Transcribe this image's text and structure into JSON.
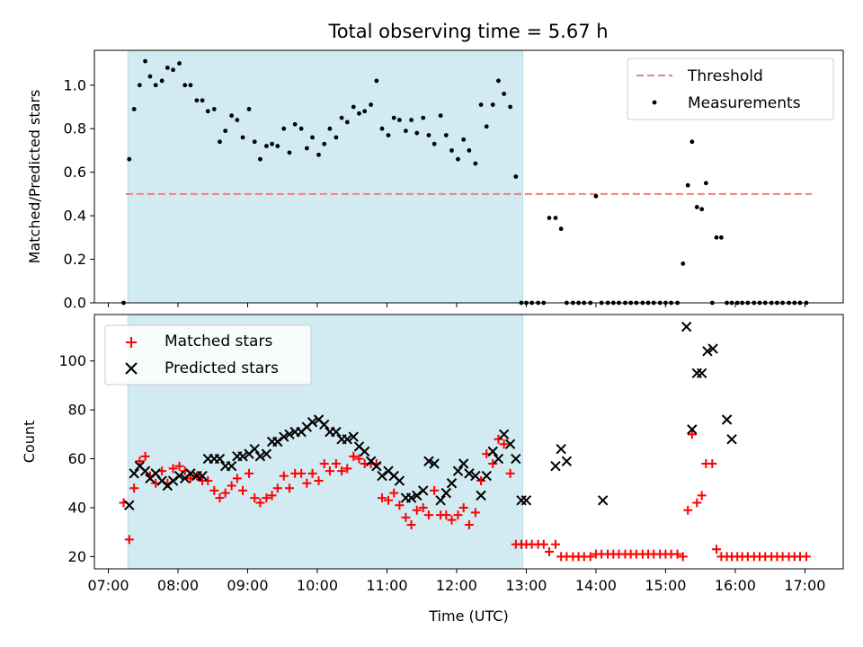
{
  "figure": {
    "title": "Total observing time = 5.67 h"
  },
  "chart_data": [
    {
      "type": "scatter",
      "panel": "top",
      "ylabel": "Matched/Predicted stars",
      "xlabel": "",
      "xlim": [
        6.8,
        17.55
      ],
      "ylim": [
        0,
        1.16
      ],
      "yticks": [
        0.0,
        0.2,
        0.4,
        0.6,
        0.8,
        1.0
      ],
      "ytick_labels": [
        "0.0",
        "0.2",
        "0.4",
        "0.6",
        "0.8",
        "1.0"
      ],
      "grid": false,
      "legend_position": "top-right",
      "shaded_region": {
        "x0": 7.28,
        "x1": 12.95,
        "color": "#add8e6"
      },
      "threshold": {
        "name": "Threshold",
        "y": 0.5,
        "x0": 7.25,
        "x1": 17.1,
        "color": "#f08080"
      },
      "series": [
        {
          "name": "Measurements",
          "color": "#000000",
          "marker": "dot",
          "x": [
            7.22,
            7.3,
            7.37,
            7.45,
            7.53,
            7.6,
            7.68,
            7.77,
            7.85,
            7.93,
            8.02,
            8.1,
            8.18,
            8.27,
            8.35,
            8.43,
            8.52,
            8.6,
            8.68,
            8.77,
            8.85,
            8.93,
            9.02,
            9.1,
            9.18,
            9.27,
            9.35,
            9.43,
            9.52,
            9.6,
            9.68,
            9.77,
            9.85,
            9.93,
            10.02,
            10.1,
            10.18,
            10.27,
            10.35,
            10.43,
            10.52,
            10.6,
            10.68,
            10.77,
            10.85,
            10.93,
            11.02,
            11.1,
            11.18,
            11.27,
            11.35,
            11.43,
            11.52,
            11.6,
            11.68,
            11.77,
            11.85,
            11.93,
            12.02,
            12.1,
            12.18,
            12.27,
            12.35,
            12.43,
            12.52,
            12.6,
            12.68,
            12.77,
            12.85,
            12.93,
            13.0,
            13.08,
            13.17,
            13.25,
            13.33,
            13.42,
            13.5,
            13.58,
            13.67,
            13.75,
            13.83,
            13.92,
            14.0,
            14.08,
            14.17,
            14.25,
            14.33,
            14.42,
            14.5,
            14.58,
            14.67,
            14.75,
            14.83,
            14.92,
            15.0,
            15.08,
            15.17,
            15.25,
            15.32,
            15.38,
            15.45,
            15.52,
            15.58,
            15.67,
            15.73,
            15.8,
            15.88,
            15.95,
            16.03,
            16.1,
            16.18,
            16.27,
            16.35,
            16.43,
            16.52,
            16.6,
            16.68,
            16.77,
            16.85,
            16.93,
            17.02
          ],
          "y": [
            0.0,
            0.66,
            0.89,
            1.0,
            1.11,
            1.04,
            1.0,
            1.02,
            1.08,
            1.07,
            1.1,
            1.0,
            1.0,
            0.93,
            0.93,
            0.88,
            0.89,
            0.74,
            0.79,
            0.86,
            0.84,
            0.76,
            0.89,
            0.74,
            0.66,
            0.72,
            0.73,
            0.72,
            0.8,
            0.69,
            0.82,
            0.8,
            0.71,
            0.76,
            0.68,
            0.73,
            0.8,
            0.76,
            0.85,
            0.83,
            0.9,
            0.87,
            0.88,
            0.91,
            1.02,
            0.8,
            0.77,
            0.85,
            0.84,
            0.79,
            0.84,
            0.78,
            0.85,
            0.77,
            0.73,
            0.86,
            0.77,
            0.7,
            0.66,
            0.75,
            0.7,
            0.64,
            0.91,
            0.81,
            0.91,
            1.02,
            0.96,
            0.9,
            0.58,
            0.0,
            0.0,
            0.0,
            0.0,
            0.0,
            0.39,
            0.39,
            0.34,
            0.0,
            0.0,
            0.0,
            0.0,
            0.0,
            0.49,
            0.0,
            0.0,
            0.0,
            0.0,
            0.0,
            0.0,
            0.0,
            0.0,
            0.0,
            0.0,
            0.0,
            0.0,
            0.0,
            0.0,
            0.18,
            0.54,
            0.74,
            0.44,
            0.43,
            0.55,
            0.0,
            0.3,
            0.3,
            0.0,
            0.0,
            0.0,
            0.0,
            0.0,
            0.0,
            0.0,
            0.0,
            0.0,
            0.0,
            0.0,
            0.0,
            0.0,
            0.0,
            0.0
          ]
        }
      ]
    },
    {
      "type": "scatter",
      "panel": "bottom",
      "ylabel": "Count",
      "xlabel": "Time (UTC)",
      "xlim": [
        6.8,
        17.55
      ],
      "ylim": [
        15,
        119
      ],
      "xticks": [
        7,
        8,
        9,
        10,
        11,
        12,
        13,
        14,
        15,
        16,
        17
      ],
      "xtick_labels": [
        "07:00",
        "08:00",
        "09:00",
        "10:00",
        "11:00",
        "12:00",
        "13:00",
        "14:00",
        "15:00",
        "16:00",
        "17:00"
      ],
      "yticks": [
        20,
        40,
        60,
        80,
        100
      ],
      "ytick_labels": [
        "20",
        "40",
        "60",
        "80",
        "100"
      ],
      "grid": false,
      "legend_position": "top-left",
      "shaded_region": {
        "x0": 7.28,
        "x1": 12.95,
        "color": "#add8e6"
      },
      "series": [
        {
          "name": "Matched stars",
          "color": "#ff0000",
          "marker": "plus",
          "x": [
            7.22,
            7.3,
            7.37,
            7.45,
            7.53,
            7.6,
            7.68,
            7.77,
            7.85,
            7.93,
            8.02,
            8.1,
            8.18,
            8.27,
            8.35,
            8.43,
            8.52,
            8.6,
            8.68,
            8.77,
            8.85,
            8.93,
            9.02,
            9.1,
            9.18,
            9.27,
            9.35,
            9.43,
            9.52,
            9.6,
            9.68,
            9.77,
            9.85,
            9.93,
            10.02,
            10.1,
            10.18,
            10.27,
            10.35,
            10.43,
            10.52,
            10.6,
            10.68,
            10.77,
            10.85,
            10.93,
            11.02,
            11.1,
            11.18,
            11.27,
            11.35,
            11.43,
            11.52,
            11.6,
            11.68,
            11.77,
            11.85,
            11.93,
            12.02,
            12.1,
            12.18,
            12.27,
            12.35,
            12.43,
            12.52,
            12.6,
            12.68,
            12.77,
            12.85,
            12.93,
            13.0,
            13.08,
            13.17,
            13.25,
            13.33,
            13.42,
            13.5,
            13.58,
            13.67,
            13.75,
            13.83,
            13.92,
            14.0,
            14.08,
            14.17,
            14.25,
            14.33,
            14.42,
            14.5,
            14.58,
            14.67,
            14.75,
            14.83,
            14.92,
            15.0,
            15.08,
            15.17,
            15.25,
            15.32,
            15.38,
            15.45,
            15.52,
            15.58,
            15.67,
            15.73,
            15.8,
            15.88,
            15.95,
            16.03,
            16.1,
            16.18,
            16.27,
            16.35,
            16.43,
            16.52,
            16.6,
            16.68,
            16.77,
            16.85,
            16.93,
            17.02
          ],
          "y": [
            42,
            27,
            48,
            59,
            61,
            53,
            50,
            55,
            50,
            56,
            57,
            55,
            52,
            53,
            51,
            51,
            47,
            44,
            46,
            49,
            52,
            47,
            54,
            44,
            42,
            44,
            45,
            48,
            53,
            48,
            54,
            54,
            50,
            54,
            51,
            58,
            55,
            58,
            55,
            56,
            61,
            60,
            58,
            58,
            58,
            44,
            43,
            46,
            41,
            36,
            33,
            39,
            40,
            37,
            47,
            37,
            37,
            35,
            37,
            40,
            33,
            38,
            51,
            62,
            58,
            68,
            66,
            54,
            25,
            25,
            25,
            25,
            25,
            25,
            22,
            25,
            20,
            20,
            20,
            20,
            20,
            20,
            21,
            21,
            21,
            21,
            21,
            21,
            21,
            21,
            21,
            21,
            21,
            21,
            21,
            21,
            21,
            20,
            39,
            70,
            42,
            45,
            58,
            58,
            23,
            20,
            20,
            20,
            20,
            20,
            20,
            20,
            20,
            20,
            20,
            20,
            20,
            20,
            20,
            20,
            20
          ]
        },
        {
          "name": "Predicted stars",
          "color": "#000000",
          "marker": "x",
          "x": [
            7.3,
            7.37,
            7.45,
            7.53,
            7.6,
            7.68,
            7.77,
            7.85,
            7.93,
            8.02,
            8.1,
            8.18,
            8.27,
            8.35,
            8.43,
            8.52,
            8.6,
            8.68,
            8.77,
            8.85,
            8.93,
            9.02,
            9.1,
            9.18,
            9.27,
            9.35,
            9.43,
            9.52,
            9.6,
            9.68,
            9.77,
            9.85,
            9.93,
            10.02,
            10.1,
            10.18,
            10.27,
            10.35,
            10.43,
            10.52,
            10.6,
            10.68,
            10.77,
            10.85,
            10.93,
            11.02,
            11.1,
            11.18,
            11.27,
            11.35,
            11.43,
            11.52,
            11.6,
            11.68,
            11.77,
            11.85,
            11.93,
            12.02,
            12.1,
            12.18,
            12.27,
            12.35,
            12.43,
            12.52,
            12.6,
            12.68,
            12.77,
            12.85,
            12.93,
            13.0,
            13.42,
            13.5,
            13.58,
            14.1,
            15.3,
            15.38,
            15.45,
            15.52,
            15.6,
            15.68,
            15.88,
            15.95
          ],
          "y": [
            41,
            54,
            57,
            55,
            52,
            54,
            51,
            49,
            51,
            53,
            52,
            54,
            53,
            53,
            60,
            60,
            60,
            57,
            57,
            61,
            61,
            62,
            64,
            61,
            62,
            67,
            67,
            69,
            70,
            71,
            71,
            73,
            75,
            76,
            74,
            71,
            71,
            68,
            68,
            69,
            65,
            63,
            59,
            57,
            53,
            55,
            53,
            51,
            44,
            44,
            45,
            47,
            59,
            58,
            43,
            46,
            50,
            55,
            58,
            54,
            53,
            45,
            53,
            63,
            60,
            70,
            66,
            60,
            43,
            43,
            57,
            64,
            59,
            43,
            114,
            72,
            95,
            95,
            104,
            105,
            76,
            68
          ]
        }
      ]
    }
  ]
}
